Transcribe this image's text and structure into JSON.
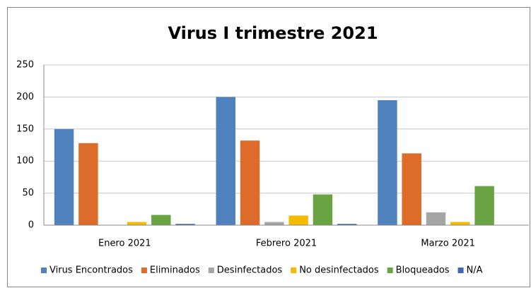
{
  "chart_data": {
    "type": "bar",
    "title": "Virus I trimestre 2021",
    "categories": [
      "Enero 2021",
      "Febrero 2021",
      "Marzo 2021"
    ],
    "series": [
      {
        "name": "Virus Encontrados",
        "color": "#4f81bd",
        "values": [
          150,
          200,
          195
        ]
      },
      {
        "name": "Eliminados",
        "color": "#dd6b2a",
        "values": [
          128,
          132,
          112
        ]
      },
      {
        "name": "Desinfectados",
        "color": "#a5a5a5",
        "values": [
          0,
          5,
          20
        ]
      },
      {
        "name": "No desinfectados",
        "color": "#f5bb00",
        "values": [
          5,
          15,
          5
        ]
      },
      {
        "name": "Bloqueados",
        "color": "#6aa442",
        "values": [
          16,
          48,
          61
        ]
      },
      {
        "name": "N/A",
        "color": "#3d67b5",
        "values": [
          2,
          2,
          0
        ]
      }
    ],
    "ylim": [
      0,
      250
    ],
    "yticks": [
      0,
      50,
      100,
      150,
      200,
      250
    ],
    "grid": true,
    "legend": "bottom"
  }
}
